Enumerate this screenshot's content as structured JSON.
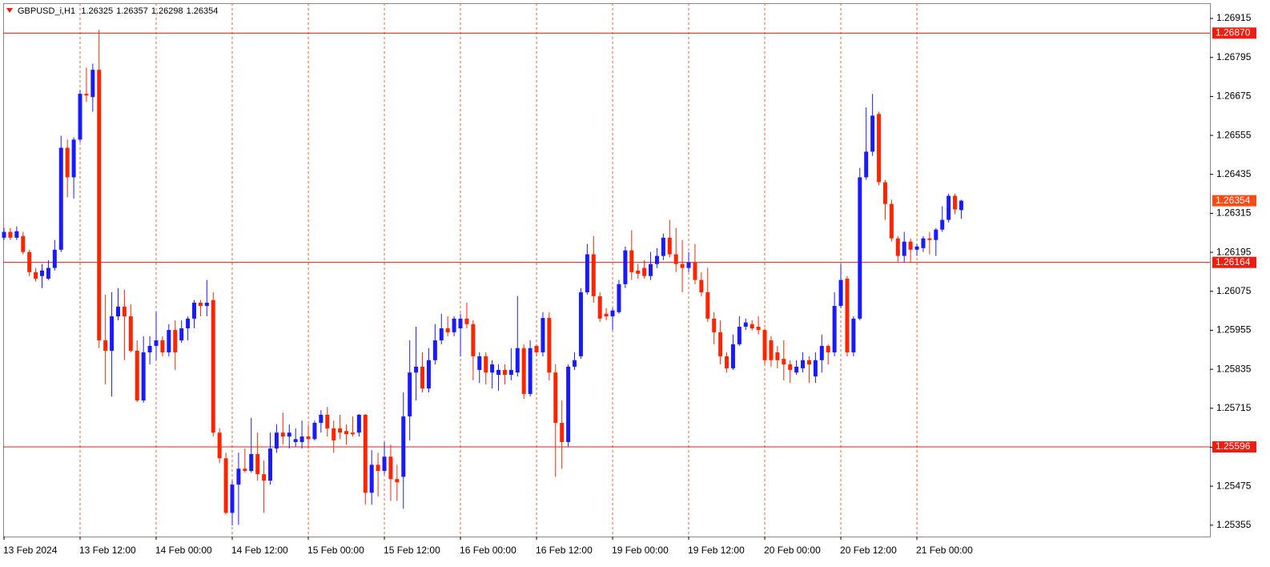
{
  "chart_data": {
    "type": "candlestick",
    "title": "GBPUSD_i,H1",
    "categories": [
      "13 Feb 2024",
      null,
      null,
      null,
      null,
      null,
      null,
      null,
      null,
      null,
      null,
      null,
      "13 Feb 12:00",
      null,
      null,
      null,
      null,
      null,
      null,
      null,
      null,
      null,
      null,
      null,
      "14 Feb 00:00",
      null,
      null,
      null,
      null,
      null,
      null,
      null,
      null,
      null,
      null,
      null,
      "14 Feb 12:00",
      null,
      null,
      null,
      null,
      null,
      null,
      null,
      null,
      null,
      null,
      null,
      "15 Feb 00:00",
      null,
      null,
      null,
      null,
      null,
      null,
      null,
      null,
      null,
      null,
      null,
      "15 Feb 12:00",
      null,
      null,
      null,
      null,
      null,
      null,
      null,
      null,
      null,
      null,
      null,
      "16 Feb 00:00",
      null,
      null,
      null,
      null,
      null,
      null,
      null,
      null,
      null,
      null,
      null,
      "16 Feb 12:00",
      null,
      null,
      null,
      null,
      null,
      null,
      null,
      null,
      null,
      null,
      null,
      "19 Feb 00:00",
      null,
      null,
      null,
      null,
      null,
      null,
      null,
      null,
      null,
      null,
      null,
      "19 Feb 12:00",
      null,
      null,
      null,
      null,
      null,
      null,
      null,
      null,
      null,
      null,
      null,
      "20 Feb 00:00",
      null,
      null,
      null,
      null,
      null,
      null,
      null,
      null,
      null,
      null,
      null,
      "20 Feb 12:00",
      null,
      null,
      null,
      null,
      null,
      null,
      null,
      null,
      null,
      null,
      null,
      "21 Feb 00:00",
      null,
      null,
      null,
      null,
      null,
      null,
      null
    ],
    "open": [
      1.2624,
      1.26258,
      1.2624,
      1.26245,
      1.26196,
      1.26134,
      1.26122,
      1.26114,
      1.26147,
      1.26203,
      1.26517,
      1.26426,
      1.26542,
      1.26683,
      1.26673,
      1.26757,
      1.25924,
      1.25892,
      1.25998,
      1.26028,
      1.25998,
      1.25892,
      1.25739,
      1.25887,
      1.25907,
      1.25924,
      1.25887,
      1.25956,
      1.25924,
      1.25961,
      1.25991,
      1.2604,
      1.2603,
      1.26048,
      1.2564,
      1.25561,
      1.25393,
      1.2548,
      1.25529,
      1.25522,
      1.25574,
      1.25512,
      1.25492,
      1.25591,
      1.2564,
      1.25628,
      1.25611,
      1.25611,
      1.25628,
      1.2562,
      1.2567,
      1.25695,
      1.25653,
      1.25653,
      1.25645,
      1.2564,
      1.2564,
      1.25695,
      1.25455,
      1.25541,
      1.25522,
      1.25566,
      1.25497,
      1.25504,
      1.2569,
      1.25825,
      1.25843,
      1.25776,
      1.25863,
      1.25924,
      1.25961,
      1.25949,
      1.25961,
      1.25991,
      1.25974,
      1.25833,
      1.25875,
      1.25825,
      1.25818,
      1.25833,
      1.25818,
      1.25825,
      1.259,
      1.25759,
      1.25907,
      1.25887,
      1.25993,
      1.25825,
      1.2567,
      1.25611,
      1.25843,
      1.25875,
      1.26072,
      1.26189,
      1.2606,
      1.26006,
      1.25998,
      1.26011,
      1.26097,
      1.26201,
      1.26139,
      1.26147,
      1.26122,
      1.26159,
      1.26184,
      1.2624,
      1.26189,
      1.26159,
      1.26147,
      1.26164,
      1.2611,
      1.26072,
      1.25991,
      1.25949,
      1.25875,
      1.25838,
      1.25912,
      1.25966,
      1.25974,
      1.25966,
      1.25956,
      1.25924,
      1.25887,
      1.25867,
      1.2585,
      1.25825,
      1.25838,
      1.25863,
      1.25813,
      1.25863,
      1.25907,
      1.25887,
      1.2603,
      1.26114,
      1.25887,
      1.25991,
      1.26426,
      1.26505,
      1.26621,
      1.26411,
      1.26344,
      1.26238,
      1.26184,
      1.26228,
      1.26203,
      1.26208,
      1.26238,
      1.26233,
      1.26265,
      1.26295,
      1.26369,
      1.26325
    ],
    "high": [
      1.2627,
      1.2627,
      1.26275,
      1.26258,
      1.26203,
      1.26147,
      1.26159,
      1.26171,
      1.26233,
      1.26554,
      1.26542,
      1.26549,
      1.26695,
      1.26764,
      1.26776,
      1.2688,
      1.26065,
      1.26072,
      1.26085,
      1.2608,
      1.26035,
      1.25924,
      1.25937,
      1.25937,
      1.26011,
      1.25937,
      1.25974,
      1.25986,
      1.25986,
      1.25998,
      1.26048,
      1.26048,
      1.2611,
      1.26072,
      1.25653,
      1.25578,
      1.25492,
      1.25578,
      1.25591,
      1.25685,
      1.2564,
      1.25554,
      1.2564,
      1.25665,
      1.25702,
      1.25665,
      1.25653,
      1.25677,
      1.25665,
      1.25677,
      1.25709,
      1.25719,
      1.25677,
      1.25695,
      1.25665,
      1.2569,
      1.25697,
      1.25697,
      1.25586,
      1.25578,
      1.25611,
      1.25603,
      1.25541,
      1.25764,
      1.25924,
      1.25966,
      1.25887,
      1.259,
      1.25974,
      1.26006,
      1.25998,
      1.25998,
      1.26006,
      1.2604,
      1.25986,
      1.25887,
      1.25887,
      1.25863,
      1.2585,
      1.2585,
      1.259,
      1.2606,
      1.25912,
      1.25924,
      1.25912,
      1.26011,
      1.26011,
      1.2585,
      1.25739,
      1.2585,
      1.25887,
      1.26085,
      1.26221,
      1.26245,
      1.26072,
      1.26023,
      1.26023,
      1.2611,
      1.26213,
      1.26263,
      1.26159,
      1.26171,
      1.26196,
      1.26208,
      1.26253,
      1.26295,
      1.2627,
      1.26233,
      1.26196,
      1.26221,
      1.26134,
      1.26147,
      1.26011,
      1.25986,
      1.25887,
      1.25942,
      1.25998,
      1.25991,
      1.25986,
      1.25998,
      1.25961,
      1.25937,
      1.25907,
      1.25924,
      1.25863,
      1.25863,
      1.25887,
      1.25875,
      1.25887,
      1.25942,
      1.25912,
      1.26072,
      1.26159,
      1.26122,
      1.25998,
      1.26455,
      1.26641,
      1.26683,
      1.26628,
      1.26418,
      1.26357,
      1.26245,
      1.26258,
      1.26238,
      1.26221,
      1.26245,
      1.26258,
      1.2627,
      1.26337,
      1.26376,
      1.26376,
      1.26357
    ],
    "low": [
      1.26233,
      1.26233,
      1.26233,
      1.26189,
      1.26122,
      1.26105,
      1.26085,
      1.2611,
      1.26139,
      1.26196,
      1.26364,
      1.26361,
      1.26534,
      1.26658,
      1.26628,
      1.259,
      1.25788,
      1.25751,
      1.25986,
      1.25863,
      1.25887,
      1.25734,
      1.25732,
      1.2585,
      1.25863,
      1.25875,
      1.25875,
      1.25833,
      1.25917,
      1.25924,
      1.25961,
      1.25998,
      1.25998,
      1.25628,
      1.25546,
      1.25388,
      1.25354,
      1.25356,
      1.25517,
      1.25517,
      1.25492,
      1.25393,
      1.2548,
      1.25578,
      1.25603,
      1.25591,
      1.25596,
      1.25591,
      1.25591,
      1.25616,
      1.2564,
      1.25628,
      1.25578,
      1.2562,
      1.25603,
      1.25628,
      1.25628,
      1.25418,
      1.25418,
      1.25443,
      1.25512,
      1.2543,
      1.2543,
      1.25406,
      1.25616,
      1.25739,
      1.25764,
      1.25764,
      1.2585,
      1.25912,
      1.25937,
      1.25937,
      1.25875,
      1.25961,
      1.25801,
      1.25793,
      1.25788,
      1.25776,
      1.25769,
      1.25788,
      1.25801,
      1.25813,
      1.25744,
      1.25751,
      1.25875,
      1.25875,
      1.25801,
      1.25504,
      1.25529,
      1.25596,
      1.25833,
      1.25867,
      1.26065,
      1.2604,
      1.25981,
      1.25986,
      1.25956,
      1.26006,
      1.26085,
      1.2611,
      1.26114,
      1.26114,
      1.2611,
      1.26147,
      1.26171,
      1.26179,
      1.26134,
      1.26072,
      1.26134,
      1.26097,
      1.2606,
      1.25981,
      1.25912,
      1.2585,
      1.25825,
      1.25833,
      1.25907,
      1.25956,
      1.25954,
      1.25942,
      1.2585,
      1.25843,
      1.25838,
      1.25801,
      1.25793,
      1.25818,
      1.25825,
      1.25793,
      1.25793,
      1.25825,
      1.2585,
      1.25875,
      1.26023,
      1.25875,
      1.25875,
      1.25986,
      1.26418,
      1.26492,
      1.26401,
      1.26295,
      1.26228,
      1.26166,
      1.26164,
      1.26164,
      1.26184,
      1.26196,
      1.26189,
      1.26184,
      1.26258,
      1.26287,
      1.26312,
      1.26298
    ],
    "close": [
      1.26258,
      1.2624,
      1.2626,
      1.26196,
      1.26134,
      1.26114,
      1.26139,
      1.26147,
      1.26203,
      1.26517,
      1.26426,
      1.26542,
      1.26683,
      1.26678,
      1.26757,
      1.25924,
      1.25892,
      1.25998,
      1.26028,
      1.25998,
      1.25892,
      1.25739,
      1.25887,
      1.25907,
      1.25924,
      1.25887,
      1.25956,
      1.25887,
      1.25961,
      1.25991,
      1.2604,
      1.2603,
      1.2604,
      1.2564,
      1.25561,
      1.25393,
      1.2548,
      1.25529,
      1.25522,
      1.25574,
      1.25512,
      1.25492,
      1.25591,
      1.2564,
      1.25628,
      1.2564,
      1.2562,
      1.25628,
      1.2562,
      1.2567,
      1.25695,
      1.25653,
      1.25616,
      1.2564,
      1.25635,
      1.25635,
      1.25695,
      1.25455,
      1.25541,
      1.25522,
      1.25566,
      1.25497,
      1.25487,
      1.2569,
      1.25825,
      1.25843,
      1.25776,
      1.25863,
      1.25924,
      1.25961,
      1.25949,
      1.25991,
      1.25991,
      1.25974,
      1.25875,
      1.25875,
      1.25825,
      1.2585,
      1.25833,
      1.25818,
      1.25833,
      1.259,
      1.25759,
      1.259,
      1.25887,
      1.25993,
      1.25825,
      1.2567,
      1.25611,
      1.25843,
      1.25863,
      1.26072,
      1.26189,
      1.2606,
      1.25991,
      1.25998,
      1.26016,
      1.26097,
      1.26201,
      1.26134,
      1.26129,
      1.26122,
      1.26159,
      1.26184,
      1.2624,
      1.26189,
      1.26159,
      1.26147,
      1.26164,
      1.2611,
      1.26072,
      1.25991,
      1.25949,
      1.25875,
      1.25838,
      1.25912,
      1.25966,
      1.25979,
      1.25961,
      1.25956,
      1.25863,
      1.25863,
      1.25863,
      1.2585,
      1.25833,
      1.25843,
      1.25863,
      1.2585,
      1.25863,
      1.25907,
      1.25887,
      1.2603,
      1.2611,
      1.25887,
      1.25991,
      1.26426,
      1.26505,
      1.26616,
      1.26411,
      1.26344,
      1.26238,
      1.26184,
      1.26228,
      1.26203,
      1.26213,
      1.26238,
      1.26233,
      1.26265,
      1.26295,
      1.26369,
      1.26327,
      1.26354
    ],
    "up_color": "#1a1aff",
    "down_color": "#ff2400",
    "ylim": [
      1.2532,
      1.26962
    ],
    "yticks": [
      1.26915,
      1.26795,
      1.26675,
      1.26555,
      1.26435,
      1.26315,
      1.26195,
      1.26075,
      1.25955,
      1.25835,
      1.25715,
      1.25595,
      1.25475,
      1.25355
    ],
    "hlines": [
      {
        "value": 1.2687,
        "label": "1.26870"
      },
      1.26164,
      1.25596
    ],
    "hline_color": "#f21b0f",
    "price_label_color": "#ff4a14",
    "separators": true,
    "separator_color": "#f2602a"
  }
}
